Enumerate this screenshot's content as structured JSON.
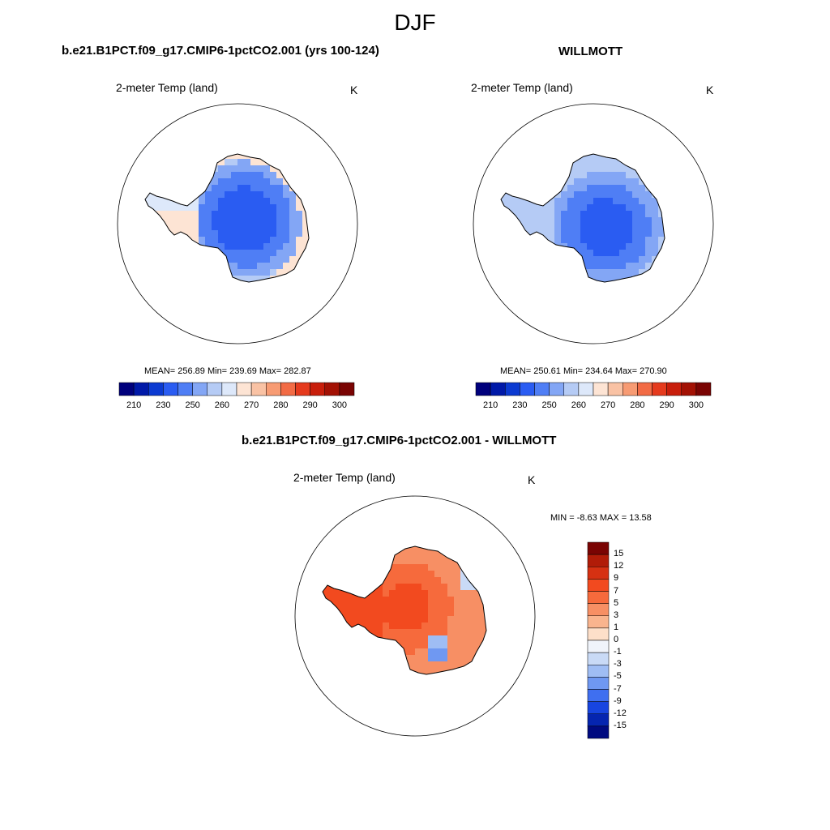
{
  "figure": {
    "title": "DJF"
  },
  "panels": {
    "model": {
      "title": "b.e21.B1PCT.f09_g17.CMIP6-1pctCO2.001 (yrs 100-124)",
      "variable": "2-meter Temp (land)",
      "units": "K",
      "stats": "MEAN= 256.89  Min= 239.69  Max= 282.87"
    },
    "obs": {
      "title": "WILLMOTT",
      "variable": "2-meter Temp (land)",
      "units": "K",
      "stats": "MEAN= 250.61  Min= 234.64  Max= 270.90"
    },
    "diff": {
      "title": "b.e21.B1PCT.f09_g17.CMIP6-1pctCO2.001 - WILLMOTT",
      "variable": "2-meter Temp (land)",
      "units": "K",
      "stats": "MIN =  -8.63 MAX =  13.58"
    }
  },
  "chart_data": [
    {
      "type": "heatmap",
      "title": "b.e21.B1PCT.f09_g17.CMIP6-1pctCO2.001 (yrs 100-124)",
      "subtitle": "2-meter Temp (land)",
      "units": "K",
      "region": "Antarctica (south polar stereographic)",
      "mean": 256.89,
      "min": 239.69,
      "max": 282.87,
      "colorbar_ticks": [
        "210",
        "230",
        "250",
        "260",
        "270",
        "280",
        "290",
        "300"
      ],
      "colorbar_levels": [
        205,
        210,
        220,
        230,
        240,
        250,
        255,
        260,
        265,
        270,
        275,
        280,
        285,
        290,
        295,
        300
      ],
      "colorbar_colors": [
        "#00007c",
        "#0019a8",
        "#0b3ad1",
        "#2a5cf2",
        "#4f7ef5",
        "#83a6f5",
        "#b5cbf5",
        "#dde8fa",
        "#fde4d4",
        "#f9c2a4",
        "#f79b73",
        "#f26b45",
        "#e53a1d",
        "#c81e0b",
        "#a31104",
        "#7a0403"
      ]
    },
    {
      "type": "heatmap",
      "title": "WILLMOTT",
      "subtitle": "2-meter Temp (land)",
      "units": "K",
      "region": "Antarctica (south polar stereographic)",
      "mean": 250.61,
      "min": 234.64,
      "max": 270.9,
      "colorbar_ticks": [
        "210",
        "230",
        "250",
        "260",
        "270",
        "280",
        "290",
        "300"
      ],
      "colorbar_levels": [
        205,
        210,
        220,
        230,
        240,
        250,
        255,
        260,
        265,
        270,
        275,
        280,
        285,
        290,
        295,
        300
      ],
      "colorbar_colors": [
        "#00007c",
        "#0019a8",
        "#0b3ad1",
        "#2a5cf2",
        "#4f7ef5",
        "#83a6f5",
        "#b5cbf5",
        "#dde8fa",
        "#fde4d4",
        "#f9c2a4",
        "#f79b73",
        "#f26b45",
        "#e53a1d",
        "#c81e0b",
        "#a31104",
        "#7a0403"
      ]
    },
    {
      "type": "heatmap",
      "title": "b.e21.B1PCT.f09_g17.CMIP6-1pctCO2.001 - WILLMOTT",
      "subtitle": "2-meter Temp (land)",
      "units": "K",
      "region": "Antarctica (south polar stereographic)",
      "min": -8.63,
      "max": 13.58,
      "colorbar_ticks": [
        "15",
        "12",
        "9",
        "7",
        "5",
        "3",
        "1",
        "0",
        "-1",
        "-3",
        "-5",
        "-7",
        "-9",
        "-12",
        "-15"
      ],
      "colorbar_colors": [
        "#7a0403",
        "#b11c08",
        "#d63112",
        "#f24a1f",
        "#f66a3c",
        "#f78f64",
        "#f9b48e",
        "#fddfc9",
        "#f0f4fb",
        "#c9daf6",
        "#9fbdf4",
        "#6f98f2",
        "#3f6ff0",
        "#1745e0",
        "#0525b0",
        "#000a80"
      ]
    }
  ]
}
